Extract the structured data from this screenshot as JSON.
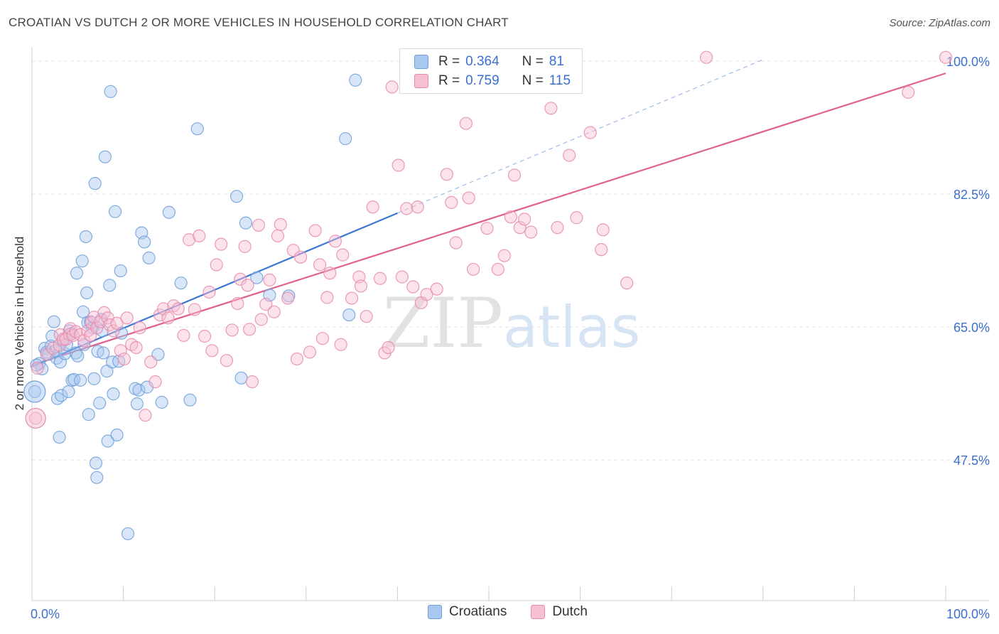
{
  "title": "CROATIAN VS DUTCH 2 OR MORE VEHICLES IN HOUSEHOLD CORRELATION CHART",
  "source": "Source: ZipAtlas.com",
  "watermark": "ZIPatlas",
  "colors": {
    "blue": "#6f9fd8",
    "blue_fill": "#a9c8f0",
    "blue_line": "#3b76d1",
    "pink": "#e68aab",
    "pink_fill": "#f6bfd2",
    "pink_line": "#e0628c",
    "axis_text": "#3b6fd0"
  },
  "legend": {
    "rows": [
      {
        "r_label": "R =",
        "r_value": "0.364",
        "n_label": "N =",
        "n_value": "81"
      },
      {
        "r_label": "R =",
        "r_value": "0.759",
        "n_label": "N =",
        "n_value": "115"
      }
    ],
    "bottom": [
      {
        "label": "Croatians"
      },
      {
        "label": "Dutch"
      }
    ]
  },
  "chart_data": {
    "type": "scatter",
    "xlabel": "",
    "ylabel": "2 or more Vehicles in Household",
    "xlim": [
      0,
      100
    ],
    "ylim": [
      29,
      101.5
    ],
    "x_tick_labels": [
      "0.0%",
      "100.0%"
    ],
    "y_ticks": [
      47.5,
      65.0,
      82.5,
      100.0
    ],
    "y_tick_labels": [
      "47.5%",
      "65.0%",
      "82.5%",
      "100.0%"
    ],
    "grid": true,
    "series": [
      {
        "name": "Croatians",
        "points": [
          [
            0.3,
            56.5
          ],
          [
            0.8,
            60.2
          ],
          [
            1.1,
            59.5
          ],
          [
            1.4,
            62.2
          ],
          [
            1.6,
            61.7
          ],
          [
            1.8,
            61.4
          ],
          [
            2.1,
            62.5
          ],
          [
            2.2,
            63.8
          ],
          [
            2.4,
            65.7
          ],
          [
            2.6,
            61.9
          ],
          [
            2.7,
            60.9
          ],
          [
            2.8,
            55.6
          ],
          [
            3.0,
            50.5
          ],
          [
            3.1,
            60.4
          ],
          [
            3.2,
            56.0
          ],
          [
            3.4,
            63.2
          ],
          [
            3.6,
            61.5
          ],
          [
            3.8,
            62.7
          ],
          [
            4.0,
            56.5
          ],
          [
            4.1,
            64.5
          ],
          [
            4.3,
            64.1
          ],
          [
            4.4,
            58.0
          ],
          [
            4.6,
            58.1
          ],
          [
            4.8,
            61.6
          ],
          [
            4.9,
            72.1
          ],
          [
            5.0,
            61.2
          ],
          [
            5.3,
            58.0
          ],
          [
            5.5,
            73.7
          ],
          [
            5.6,
            67.0
          ],
          [
            5.7,
            62.7
          ],
          [
            5.9,
            76.9
          ],
          [
            6.0,
            69.5
          ],
          [
            6.1,
            65.6
          ],
          [
            6.2,
            53.5
          ],
          [
            6.4,
            65.7
          ],
          [
            6.6,
            64.9
          ],
          [
            6.8,
            58.2
          ],
          [
            6.9,
            83.9
          ],
          [
            7.0,
            47.1
          ],
          [
            7.1,
            45.2
          ],
          [
            7.2,
            61.8
          ],
          [
            7.4,
            55.0
          ],
          [
            7.6,
            66.0
          ],
          [
            7.7,
            64.5
          ],
          [
            7.8,
            61.6
          ],
          [
            8.0,
            87.4
          ],
          [
            8.2,
            59.2
          ],
          [
            8.3,
            50.0
          ],
          [
            8.5,
            70.5
          ],
          [
            8.6,
            96.0
          ],
          [
            8.8,
            60.4
          ],
          [
            8.9,
            56.2
          ],
          [
            9.1,
            80.2
          ],
          [
            9.3,
            50.8
          ],
          [
            9.5,
            60.5
          ],
          [
            9.7,
            72.4
          ],
          [
            9.8,
            64.2
          ],
          [
            10.5,
            37.8
          ],
          [
            11.3,
            56.9
          ],
          [
            11.5,
            54.9
          ],
          [
            11.7,
            56.7
          ],
          [
            12.0,
            77.4
          ],
          [
            12.3,
            76.2
          ],
          [
            12.6,
            57.1
          ],
          [
            12.8,
            74.1
          ],
          [
            13.8,
            61.4
          ],
          [
            14.2,
            55.1
          ],
          [
            15.0,
            80.1
          ],
          [
            16.3,
            70.8
          ],
          [
            17.3,
            55.4
          ],
          [
            18.1,
            91.1
          ],
          [
            22.4,
            82.2
          ],
          [
            22.9,
            58.3
          ],
          [
            23.4,
            78.7
          ],
          [
            24.6,
            71.5
          ],
          [
            26.0,
            69.2
          ],
          [
            28.1,
            69.1
          ],
          [
            34.7,
            66.6
          ],
          [
            34.3,
            89.8
          ],
          [
            35.4,
            97.5
          ],
          [
            0.5,
            60.0
          ]
        ]
      },
      {
        "name": "Dutch",
        "points": [
          [
            0.4,
            53.0
          ],
          [
            0.6,
            59.6
          ],
          [
            1.6,
            61.4
          ],
          [
            2.3,
            62.2
          ],
          [
            3.0,
            62.6
          ],
          [
            3.1,
            64.0
          ],
          [
            3.4,
            63.4
          ],
          [
            3.7,
            63.4
          ],
          [
            4.1,
            64.0
          ],
          [
            4.2,
            64.8
          ],
          [
            4.5,
            63.9
          ],
          [
            4.8,
            64.4
          ],
          [
            5.3,
            64.0
          ],
          [
            5.7,
            63.2
          ],
          [
            6.1,
            64.5
          ],
          [
            6.4,
            63.9
          ],
          [
            6.5,
            65.6
          ],
          [
            6.8,
            66.3
          ],
          [
            7.1,
            64.9
          ],
          [
            7.5,
            65.7
          ],
          [
            7.9,
            66.9
          ],
          [
            8.3,
            66.2
          ],
          [
            8.5,
            65.3
          ],
          [
            8.9,
            64.5
          ],
          [
            9.3,
            65.5
          ],
          [
            9.7,
            61.9
          ],
          [
            10.1,
            60.8
          ],
          [
            10.4,
            66.2
          ],
          [
            10.9,
            62.7
          ],
          [
            11.4,
            62.3
          ],
          [
            11.8,
            64.9
          ],
          [
            12.4,
            53.4
          ],
          [
            13.0,
            60.4
          ],
          [
            13.5,
            57.8
          ],
          [
            14.0,
            66.6
          ],
          [
            14.4,
            67.4
          ],
          [
            14.9,
            66.2
          ],
          [
            15.5,
            67.8
          ],
          [
            16.0,
            67.4
          ],
          [
            16.6,
            63.9
          ],
          [
            17.2,
            76.5
          ],
          [
            17.8,
            67.3
          ],
          [
            18.3,
            77.0
          ],
          [
            18.9,
            63.8
          ],
          [
            19.4,
            69.6
          ],
          [
            19.7,
            61.9
          ],
          [
            20.2,
            73.2
          ],
          [
            20.7,
            75.9
          ],
          [
            21.3,
            60.6
          ],
          [
            21.9,
            64.6
          ],
          [
            22.5,
            68.1
          ],
          [
            22.8,
            71.3
          ],
          [
            23.3,
            75.6
          ],
          [
            23.6,
            70.5
          ],
          [
            23.8,
            64.7
          ],
          [
            24.1,
            57.8
          ],
          [
            24.8,
            78.4
          ],
          [
            25.1,
            66.0
          ],
          [
            25.6,
            68.0
          ],
          [
            26.0,
            71.2
          ],
          [
            26.5,
            67.0
          ],
          [
            26.9,
            77.0
          ],
          [
            27.2,
            78.5
          ],
          [
            28.0,
            68.8
          ],
          [
            28.6,
            75.1
          ],
          [
            29.0,
            60.8
          ],
          [
            29.4,
            74.2
          ],
          [
            30.4,
            61.7
          ],
          [
            31.0,
            77.7
          ],
          [
            31.5,
            73.2
          ],
          [
            31.8,
            63.5
          ],
          [
            32.3,
            68.9
          ],
          [
            32.6,
            72.1
          ],
          [
            33.2,
            76.3
          ],
          [
            33.8,
            62.7
          ],
          [
            34.0,
            74.5
          ],
          [
            35.0,
            68.8
          ],
          [
            35.8,
            71.6
          ],
          [
            36.0,
            70.4
          ],
          [
            36.6,
            66.4
          ],
          [
            37.3,
            80.8
          ],
          [
            38.1,
            71.4
          ],
          [
            38.6,
            61.6
          ],
          [
            39.0,
            62.3
          ],
          [
            39.4,
            96.6
          ],
          [
            40.1,
            86.3
          ],
          [
            40.5,
            71.6
          ],
          [
            41.0,
            80.6
          ],
          [
            41.7,
            70.3
          ],
          [
            42.2,
            80.8
          ],
          [
            42.6,
            68.2
          ],
          [
            43.2,
            69.3
          ],
          [
            44.3,
            70.0
          ],
          [
            45.4,
            85.1
          ],
          [
            45.9,
            81.4
          ],
          [
            46.4,
            76.1
          ],
          [
            47.5,
            91.8
          ],
          [
            47.8,
            82.0
          ],
          [
            48.3,
            72.6
          ],
          [
            49.8,
            78.0
          ],
          [
            51.0,
            72.6
          ],
          [
            51.7,
            74.4
          ],
          [
            52.4,
            79.5
          ],
          [
            52.8,
            85.0
          ],
          [
            53.4,
            78.1
          ],
          [
            53.9,
            79.2
          ],
          [
            54.6,
            77.5
          ],
          [
            56.8,
            93.8
          ],
          [
            57.5,
            78.1
          ],
          [
            58.8,
            87.6
          ],
          [
            59.6,
            79.4
          ],
          [
            61.1,
            90.6
          ],
          [
            62.3,
            75.2
          ],
          [
            62.5,
            77.8
          ],
          [
            65.1,
            70.8
          ],
          [
            73.8,
            100.5
          ],
          [
            95.9,
            95.9
          ],
          [
            100.0,
            100.5
          ]
        ]
      }
    ],
    "trend_lines": [
      {
        "series": "Croatians",
        "x": [
          0,
          40
        ],
        "y": [
          59.8,
          80.0
        ],
        "dashed_extension_to_x": 80
      },
      {
        "series": "Dutch",
        "x": [
          0,
          100
        ],
        "y": [
          60.0,
          98.4
        ]
      }
    ]
  }
}
